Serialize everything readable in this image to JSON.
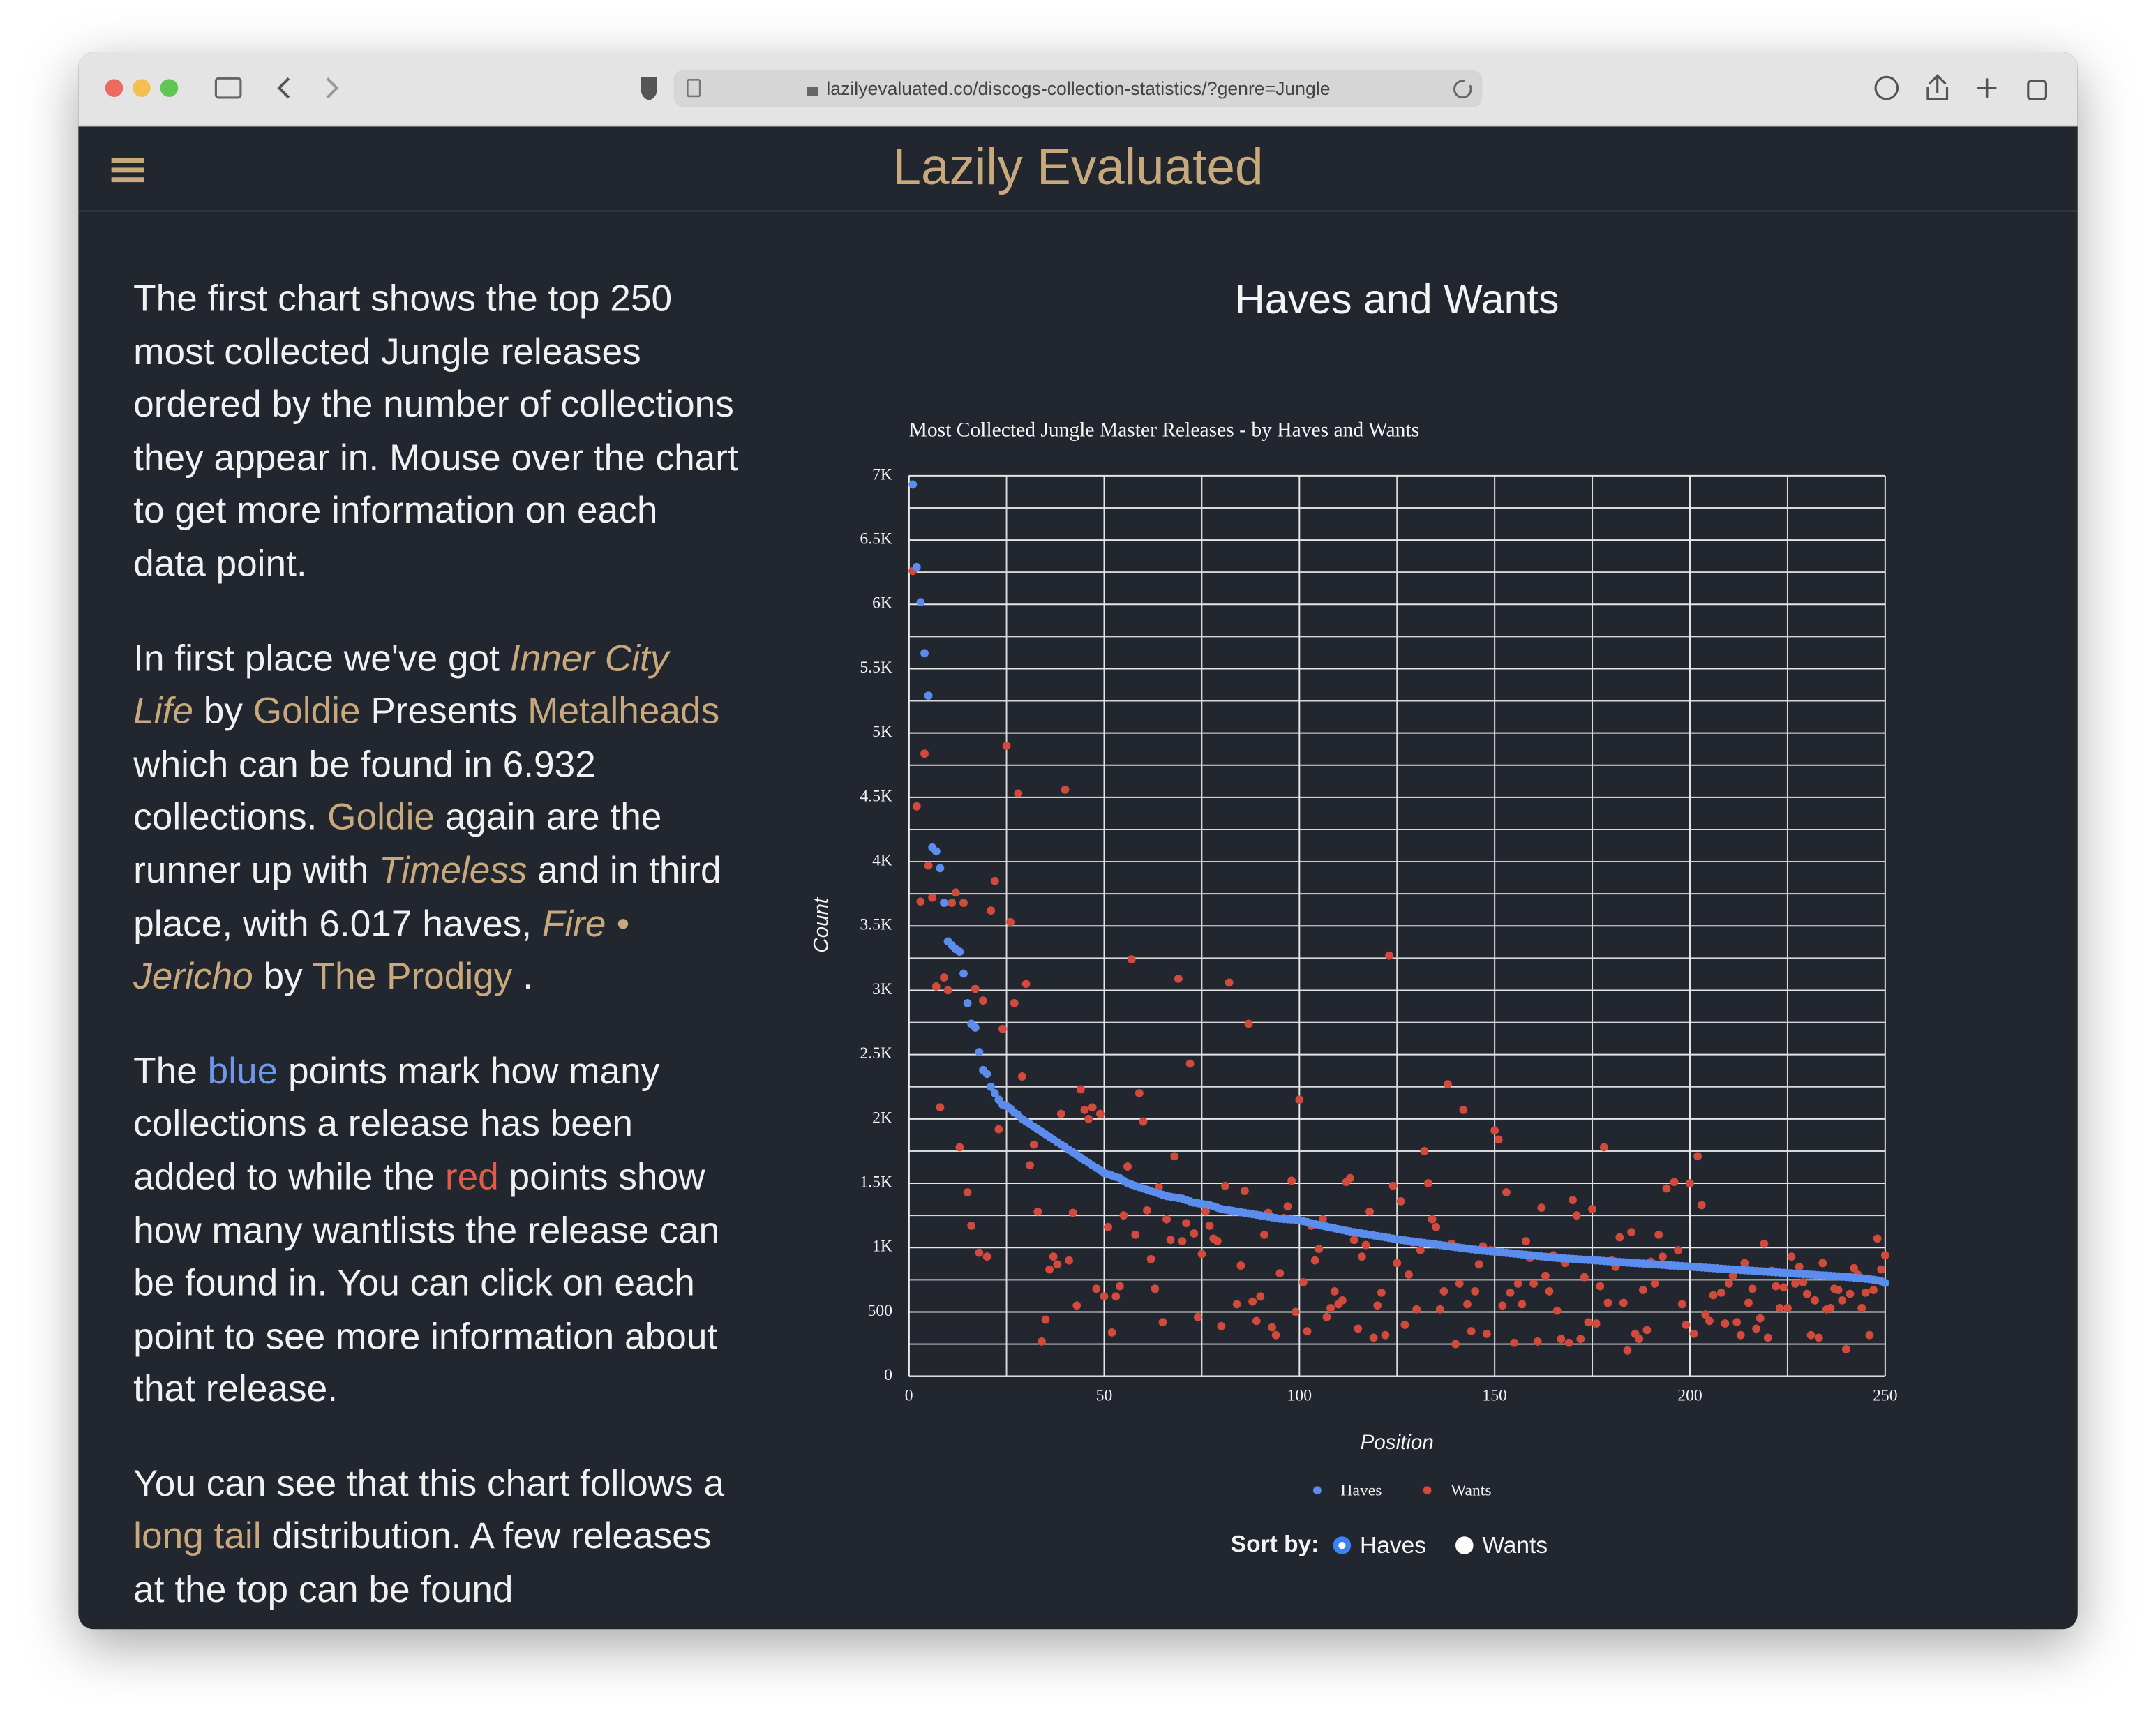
{
  "browser": {
    "url": "lazilyevaluated.co/discogs-collection-statistics/?genre=Jungle"
  },
  "header": {
    "title": "Lazily Evaluated"
  },
  "article": {
    "paragraphs": [
      [
        {
          "text": "The first chart shows the top 250 most collected Jungle releases ordered by the number of collections they appear in. Mouse over the chart to get more information on each data point.",
          "style": "plain"
        }
      ],
      [
        {
          "text": "In first place we've got ",
          "style": "plain"
        },
        {
          "text": "Inner City Life",
          "style": "italic-link"
        },
        {
          "text": " by ",
          "style": "plain"
        },
        {
          "text": "Goldie",
          "style": "link"
        },
        {
          "text": " Presents ",
          "style": "plain"
        },
        {
          "text": "Metalheads",
          "style": "link"
        },
        {
          "text": " which can be found in 6.932 collections. ",
          "style": "plain"
        },
        {
          "text": "Goldie",
          "style": "link"
        },
        {
          "text": " again are the runner up with ",
          "style": "plain"
        },
        {
          "text": "Timeless",
          "style": "italic-link"
        },
        {
          "text": " and in third place, with 6.017 haves, ",
          "style": "plain"
        },
        {
          "text": "Fire • Jericho",
          "style": "italic-link"
        },
        {
          "text": " by ",
          "style": "plain"
        },
        {
          "text": "The Prodigy",
          "style": "link"
        },
        {
          "text": " .",
          "style": "plain"
        }
      ],
      [
        {
          "text": "The ",
          "style": "plain"
        },
        {
          "text": "blue",
          "style": "blue"
        },
        {
          "text": " points mark how many collections a release has been added to while the ",
          "style": "plain"
        },
        {
          "text": "red",
          "style": "red"
        },
        {
          "text": " points show how many wantlists the release can be found in. You can click on each point to see more information about that release.",
          "style": "plain"
        }
      ],
      [
        {
          "text": "You can see that this chart follows a ",
          "style": "plain"
        },
        {
          "text": "long tail",
          "style": "link"
        },
        {
          "text": " distribution. A few releases at the top can be found",
          "style": "plain"
        }
      ]
    ]
  },
  "section_heading": "Haves and Wants",
  "chart_data": {
    "type": "scatter",
    "title": "Most Collected Jungle Master Releases - by Haves and Wants",
    "x_label": "Position",
    "y_label": "Count",
    "x": [
      1,
      2,
      3,
      4,
      5,
      6,
      7,
      8,
      9,
      10,
      11,
      12,
      13,
      14,
      15,
      16,
      17,
      18,
      19,
      20,
      21,
      22,
      23,
      24,
      25,
      26,
      27,
      28,
      29,
      30,
      31,
      32,
      33,
      34,
      35,
      36,
      37,
      38,
      39,
      40,
      41,
      42,
      43,
      44,
      45,
      46,
      47,
      48,
      49,
      50,
      51,
      52,
      53,
      54,
      55,
      56,
      57,
      58,
      59,
      60,
      61,
      62,
      63,
      64,
      65,
      66,
      67,
      68,
      69,
      70,
      71,
      72,
      73,
      74,
      75,
      76,
      77,
      78,
      79,
      80,
      81,
      82,
      83,
      84,
      85,
      86,
      87,
      88,
      89,
      90,
      91,
      92,
      93,
      94,
      95,
      96,
      97,
      98,
      99,
      100,
      101,
      102,
      103,
      104,
      105,
      106,
      107,
      108,
      109,
      110,
      111,
      112,
      113,
      114,
      115,
      116,
      117,
      118,
      119,
      120,
      121,
      122,
      123,
      124,
      125,
      126,
      127,
      128,
      129,
      130,
      131,
      132,
      133,
      134,
      135,
      136,
      137,
      138,
      139,
      140,
      141,
      142,
      143,
      144,
      145,
      146,
      147,
      148,
      149,
      150,
      151,
      152,
      153,
      154,
      155,
      156,
      157,
      158,
      159,
      160,
      161,
      162,
      163,
      164,
      165,
      166,
      167,
      168,
      169,
      170,
      171,
      172,
      173,
      174,
      175,
      176,
      177,
      178,
      179,
      180,
      181,
      182,
      183,
      184,
      185,
      186,
      187,
      188,
      189,
      190,
      191,
      192,
      193,
      194,
      195,
      196,
      197,
      198,
      199,
      200,
      201,
      202,
      203,
      204,
      205,
      206,
      207,
      208,
      209,
      210,
      211,
      212,
      213,
      214,
      215,
      216,
      217,
      218,
      219,
      220,
      221,
      222,
      223,
      224,
      225,
      226,
      227,
      228,
      229,
      230,
      231,
      232,
      233,
      234,
      235,
      236,
      237,
      238,
      239,
      240,
      241,
      242,
      243,
      244,
      245,
      246,
      247,
      248,
      249,
      250
    ],
    "series": [
      {
        "name": "Wants",
        "color": "#d24a3c",
        "values": [
          6260,
          4430,
          3690,
          4840,
          3970,
          3720,
          3030,
          2090,
          3100,
          3000,
          3680,
          3760,
          1780,
          3680,
          1430,
          1170,
          3010,
          960,
          2920,
          930,
          3620,
          3850,
          1920,
          2700,
          4900,
          3530,
          2900,
          4530,
          2330,
          3050,
          1640,
          1800,
          1280,
          270,
          440,
          830,
          930,
          870,
          2040,
          4560,
          900,
          1270,
          550,
          2230,
          2070,
          2000,
          2090,
          680,
          2040,
          620,
          1160,
          340,
          620,
          700,
          1250,
          1630,
          3240,
          1100,
          2200,
          1980,
          1290,
          910,
          680,
          1470,
          420,
          1220,
          1060,
          1710,
          3090,
          1050,
          1190,
          2430,
          1110,
          460,
          950,
          1280,
          1170,
          1070,
          1050,
          390,
          1480,
          3060,
          1280,
          560,
          860,
          1440,
          2740,
          580,
          430,
          620,
          1100,
          1270,
          380,
          320,
          800,
          1230,
          1320,
          1520,
          500,
          2150,
          730,
          350,
          1170,
          900,
          990,
          1220,
          460,
          530,
          660,
          560,
          590,
          1510,
          1540,
          1060,
          370,
          930,
          1020,
          1280,
          300,
          550,
          650,
          320,
          3270,
          1480,
          880,
          1360,
          400,
          790,
          1040,
          520,
          980,
          1750,
          1500,
          1220,
          1160,
          520,
          660,
          2270,
          1030,
          250,
          720,
          2070,
          560,
          350,
          660,
          870,
          1010,
          330,
          980,
          1910,
          1840,
          550,
          1430,
          650,
          260,
          720,
          560,
          1050,
          920,
          720,
          270,
          1310,
          780,
          660,
          940,
          510,
          290,
          880,
          260,
          1370,
          1250,
          290,
          770,
          420,
          1300,
          410,
          700,
          1780,
          570,
          900,
          850,
          1080,
          570,
          200,
          1120,
          330,
          290,
          670,
          360,
          890,
          720,
          1100,
          930,
          1460,
          860,
          1510,
          980,
          560,
          400,
          1500,
          330,
          1710,
          1330,
          480,
          430,
          630,
          840,
          650,
          410,
          720,
          780,
          420,
          320,
          880,
          570,
          680,
          370,
          450,
          1030,
          300,
          820,
          700,
          530,
          690,
          530,
          930,
          720,
          850,
          730,
          640,
          320,
          590,
          300,
          880,
          520,
          530,
          680,
          670,
          590,
          210,
          640,
          840,
          790,
          530,
          650,
          320,
          670,
          1070,
          830,
          940
        ]
      },
      {
        "name": "Haves",
        "color": "#5b8def",
        "values": [
          6932,
          6290,
          6017,
          5620,
          5290,
          4110,
          4080,
          3950,
          3680,
          3380,
          3350,
          3320,
          3300,
          3130,
          2900,
          2740,
          2710,
          2520,
          2380,
          2350,
          2250,
          2200,
          2150,
          2110,
          2100,
          2080,
          2050,
          2030,
          2000,
          1980,
          1960,
          1940,
          1920,
          1900,
          1880,
          1860,
          1840,
          1820,
          1800,
          1780,
          1760,
          1740,
          1720,
          1700,
          1680,
          1660,
          1640,
          1620,
          1600,
          1580,
          1570,
          1560,
          1550,
          1540,
          1520,
          1500,
          1490,
          1480,
          1470,
          1460,
          1450,
          1440,
          1430,
          1420,
          1410,
          1400,
          1395,
          1390,
          1385,
          1380,
          1370,
          1360,
          1350,
          1345,
          1340,
          1335,
          1330,
          1320,
          1310,
          1300,
          1295,
          1290,
          1285,
          1280,
          1275,
          1270,
          1265,
          1260,
          1255,
          1250,
          1245,
          1240,
          1235,
          1230,
          1225,
          1222,
          1220,
          1218,
          1215,
          1212,
          1205,
          1198,
          1190,
          1183,
          1176,
          1170,
          1163,
          1156,
          1150,
          1143,
          1137,
          1131,
          1125,
          1120,
          1115,
          1110,
          1105,
          1100,
          1095,
          1090,
          1085,
          1080,
          1075,
          1070,
          1065,
          1060,
          1056,
          1052,
          1048,
          1044,
          1040,
          1036,
          1032,
          1028,
          1024,
          1020,
          1016,
          1012,
          1008,
          1004,
          1000,
          996,
          992,
          988,
          984,
          980,
          977,
          974,
          971,
          968,
          965,
          962,
          959,
          956,
          953,
          950,
          947,
          944,
          941,
          938,
          935,
          932,
          929,
          926,
          923,
          920,
          918,
          916,
          914,
          912,
          910,
          908,
          906,
          904,
          902,
          900,
          898,
          896,
          894,
          892,
          890,
          888,
          886,
          884,
          882,
          880,
          878,
          876,
          874,
          872,
          870,
          868,
          866,
          864,
          862,
          860,
          858,
          856,
          854,
          852,
          850,
          848,
          846,
          844,
          842,
          840,
          838,
          836,
          834,
          832,
          830,
          828,
          826,
          824,
          822,
          820,
          818,
          816,
          814,
          812,
          810,
          808,
          806,
          804,
          802,
          800,
          798,
          796,
          794,
          792,
          790,
          788,
          786,
          784,
          782,
          780,
          778,
          776,
          774,
          772,
          770,
          767,
          764,
          761,
          758,
          755,
          750,
          745,
          738,
          725
        ]
      }
    ],
    "xlim": [
      0,
      250
    ],
    "ylim": [
      0,
      7000
    ],
    "xticks": [
      0,
      50,
      100,
      150,
      200,
      250
    ],
    "yticks": [
      0,
      500,
      {
        "value": 1000,
        "label": "1K"
      },
      {
        "value": 1500,
        "label": "1.5K"
      },
      {
        "value": 2000,
        "label": "2K"
      },
      {
        "value": 2500,
        "label": "2.5K"
      },
      {
        "value": 3000,
        "label": "3K"
      },
      {
        "value": 3500,
        "label": "3.5K"
      },
      {
        "value": 4000,
        "label": "4K"
      },
      {
        "value": 4500,
        "label": "4.5K"
      },
      {
        "value": 5000,
        "label": "5K"
      },
      {
        "value": 5500,
        "label": "5.5K"
      },
      {
        "value": 6000,
        "label": "6K"
      },
      {
        "value": 6500,
        "label": "6.5K"
      },
      {
        "value": 7000,
        "label": "7K"
      }
    ],
    "x_minor_grid": [
      25,
      75,
      125,
      175,
      225
    ],
    "y_minor_grid": [
      250,
      750,
      1250,
      1750,
      2250,
      2750,
      3250,
      3750,
      4250,
      4750,
      5250,
      5750,
      6250,
      6750
    ],
    "grid": true,
    "legend": "bottom"
  },
  "sort": {
    "label": "Sort by:",
    "options": [
      "Haves",
      "Wants"
    ],
    "selected": 0
  }
}
